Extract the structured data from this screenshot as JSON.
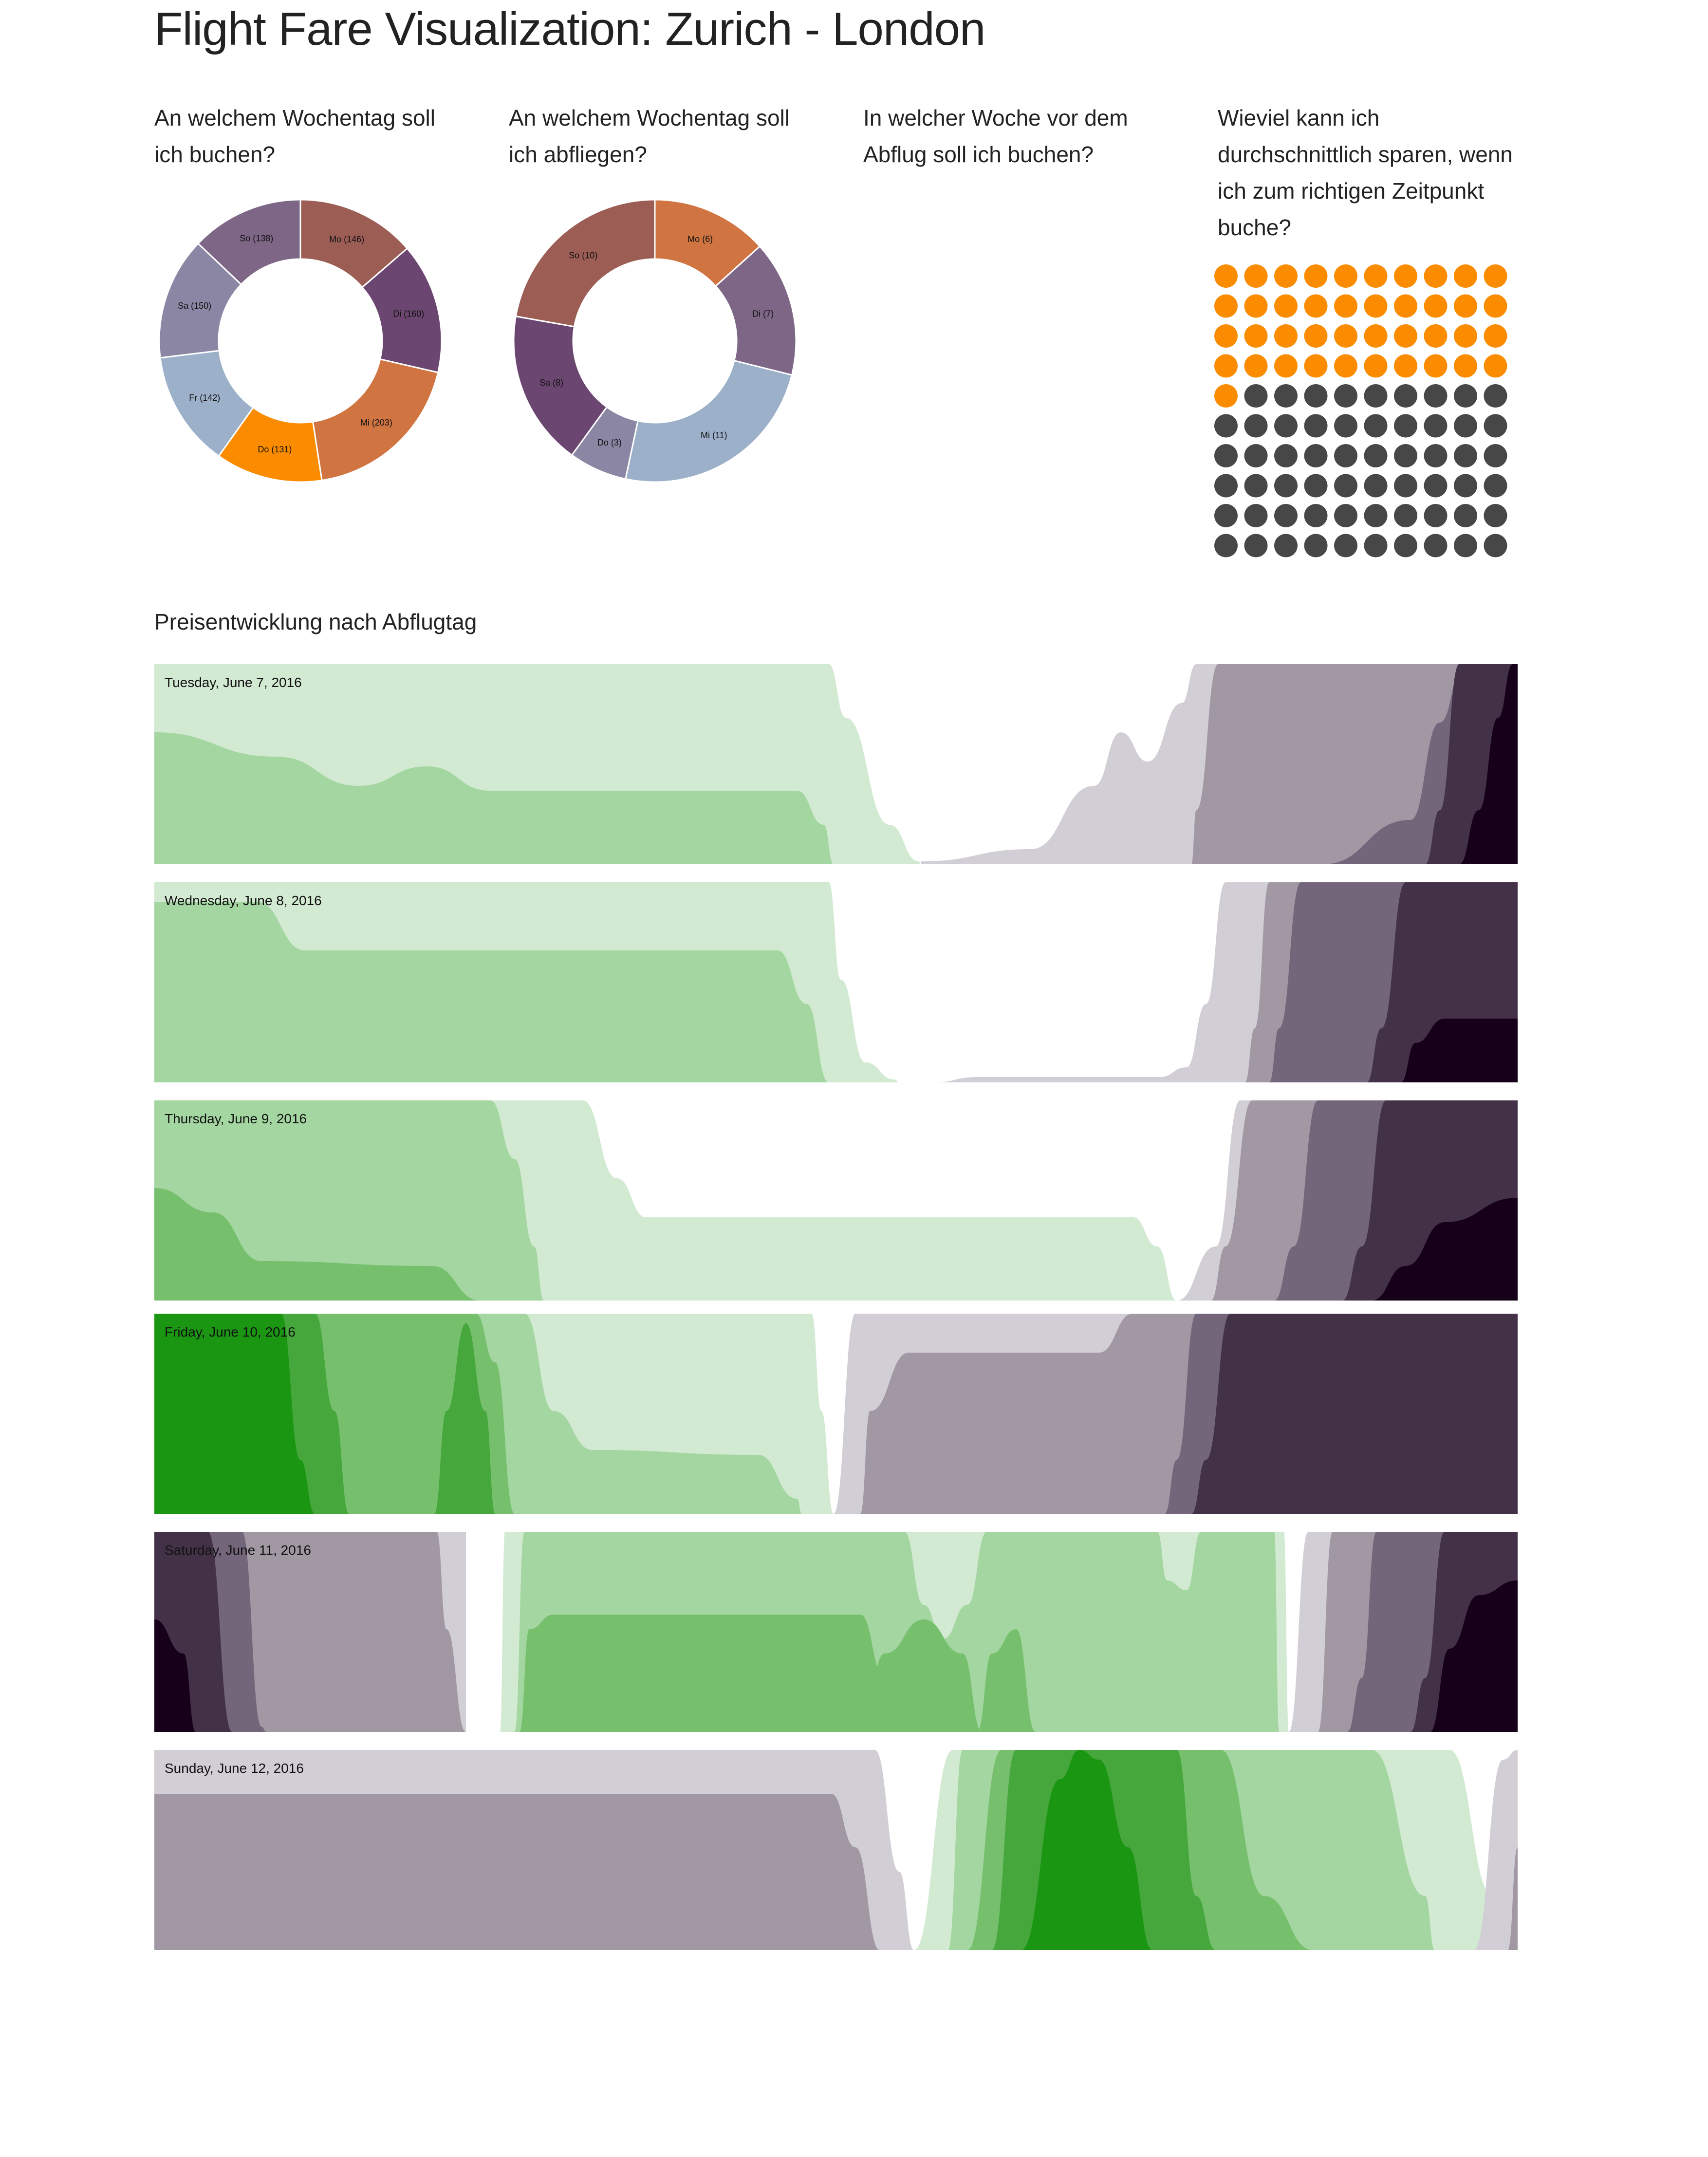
{
  "page": {
    "title": "Flight Fare Visualization: Zurich - London",
    "questions": [
      "An welchem Wochentag soll ich buchen?",
      "An welchem Wochentag soll ich abfliegen?",
      "In welcher Woche vor dem Abflug soll ich buchen?",
      "Wieviel kann ich durchschnittlich sparen, wenn ich zum richtigen Zeitpunkt buche?"
    ],
    "section_title": "Preisentwicklung nach Abflugtag"
  },
  "chart_data": [
    {
      "type": "pie",
      "variant": "donut",
      "slices": [
        {
          "label": "Mo (146)",
          "value": 146,
          "color": "#9c5d55"
        },
        {
          "label": "Di (160)",
          "value": 160,
          "color": "#6b4670"
        },
        {
          "label": "Mi (203)",
          "value": 203,
          "color": "#d07542"
        },
        {
          "label": "Do (131)",
          "value": 131,
          "color": "#fb8c00"
        },
        {
          "label": "Fr (142)",
          "value": 142,
          "color": "#9cb0c9"
        },
        {
          "label": "Sa (150)",
          "value": 150,
          "color": "#8a86a4"
        },
        {
          "label": "So (138)",
          "value": 138,
          "color": "#7d6686"
        }
      ]
    },
    {
      "type": "pie",
      "variant": "donut",
      "slices": [
        {
          "label": "Mo (6)",
          "value": 6,
          "color": "#d07542"
        },
        {
          "label": "Di (7)",
          "value": 7,
          "color": "#7d6686"
        },
        {
          "label": "Mi (11)",
          "value": 11,
          "color": "#9cb0c9"
        },
        {
          "label": "Do (3)",
          "value": 3,
          "color": "#8a86a4"
        },
        {
          "label": "Sa (8)",
          "value": 8,
          "color": "#6b4670"
        },
        {
          "label": "So (10)",
          "value": 10,
          "color": "#9c5d55"
        }
      ]
    },
    {
      "type": "waffle",
      "total": 100,
      "highlighted": 41,
      "highlight_color": "#fb8c00",
      "base_color": "#474747"
    },
    {
      "type": "area",
      "variant": "horizon-stream",
      "series": [
        {
          "name": "Tuesday, June 7, 2016"
        },
        {
          "name": "Wednesday, June 8, 2016"
        },
        {
          "name": "Thursday, June 9, 2016"
        },
        {
          "name": "Friday, June 10, 2016"
        },
        {
          "name": "Saturday, June 11, 2016"
        },
        {
          "name": "Sunday, June 12, 2016"
        }
      ],
      "palette": {
        "green": [
          "#d2e9d2",
          "#a3d6a0",
          "#76c06d",
          "#45a73c",
          "#1a9612"
        ],
        "purple": [
          "#d2ced5",
          "#a198a4",
          "#73667a",
          "#433247",
          "#170019"
        ]
      }
    }
  ]
}
